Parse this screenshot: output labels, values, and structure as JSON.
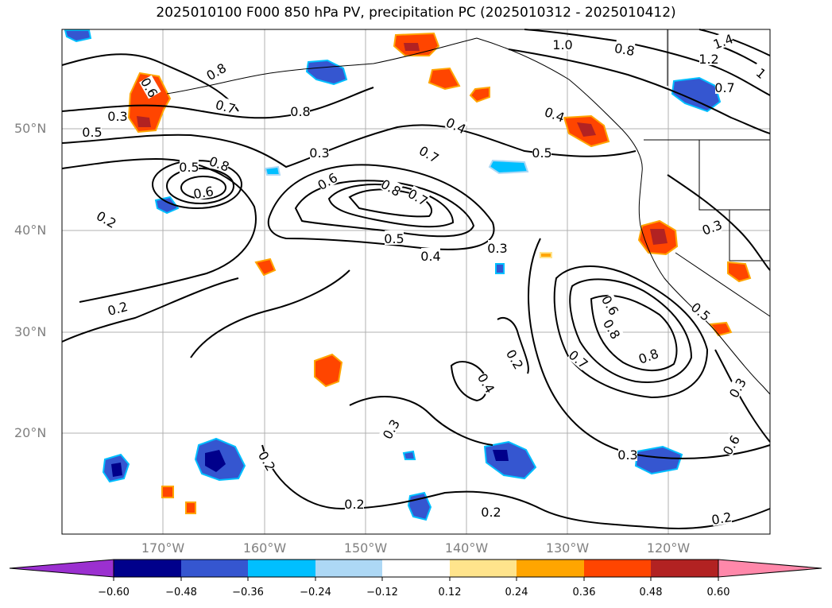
{
  "title": "2025010100 F000 850 hPa PV, precipitation PC (2025010312 - 2025010412)",
  "lat_labels": [
    "50°N",
    "40°N",
    "30°N",
    "20°N"
  ],
  "lon_labels": [
    "170°W",
    "160°W",
    "150°W",
    "140°W",
    "130°W",
    "120°W"
  ],
  "colorbar": {
    "ticks": [
      "−0.60",
      "−0.48",
      "−0.36",
      "−0.24",
      "−0.12",
      "0.12",
      "0.24",
      "0.36",
      "0.48",
      "0.60"
    ],
    "colors": [
      "#9b30d0",
      "#00008b",
      "#3556d0",
      "#00bfff",
      "#add8f5",
      "#ffffff",
      "#ffe48c",
      "#ffa500",
      "#ff4500",
      "#b22222",
      "#ff88aa"
    ]
  },
  "contour_labels": [
    "0.8",
    "0.6",
    "0.7",
    "0.8",
    "1.0",
    "0.8",
    "1.4",
    "1.2",
    "1",
    "0.7",
    "0.4",
    "0.4",
    "0.5",
    "0.3",
    "0.5",
    "0.3",
    "0.7",
    "0.5",
    "0.8",
    "0.6",
    "0.6",
    "0.8",
    "0.7",
    "0.3",
    "0.2",
    "0.5",
    "0.4",
    "0.3",
    "0.2",
    "0.6",
    "0.8",
    "0.7",
    "0.8",
    "0.5",
    "0.2",
    "0.4",
    "0.3",
    "0.2",
    "0.3",
    "0.3",
    "0.6",
    "0.2",
    "0.2",
    "0.2"
  ],
  "colors": {
    "gridline": "#b0b0b0",
    "contour": "#000000",
    "axis_label": "#808080"
  }
}
